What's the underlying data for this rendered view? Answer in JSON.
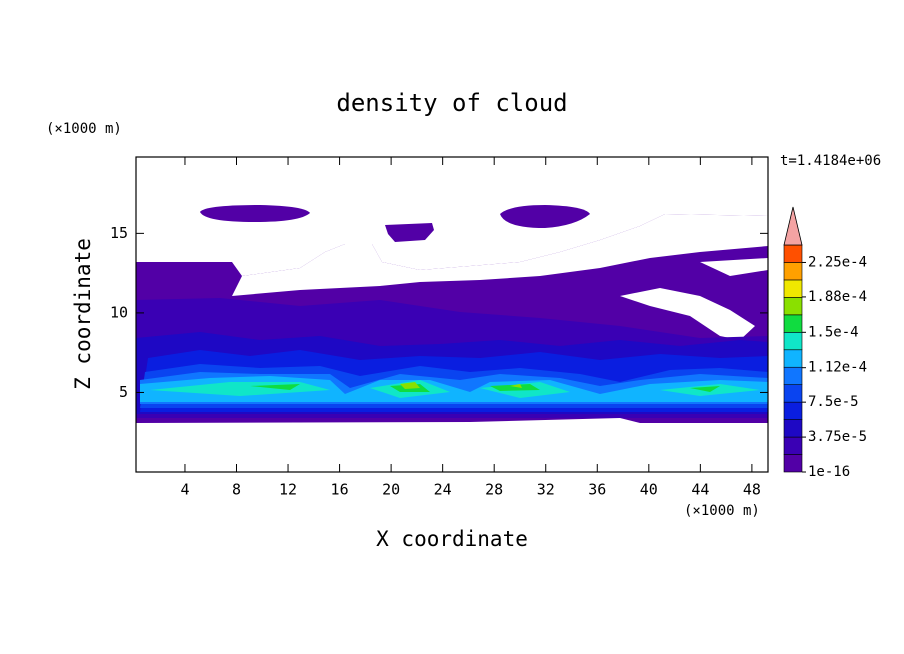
{
  "chart_data": {
    "type": "contour",
    "title": "density of cloud",
    "xlabel": "X coordinate",
    "ylabel": "Z coordinate",
    "x_unit": "(×1000 m)",
    "y_unit": "(×1000 m)",
    "annotation": "t=1.4184e+06",
    "xlim": [
      0.2,
      49.25
    ],
    "xticks": [
      4,
      8,
      12,
      16,
      20,
      24,
      28,
      32,
      36,
      40,
      44,
      48
    ],
    "ylim": [
      0,
      19.8
    ],
    "yticks": [
      5,
      10,
      15
    ],
    "levels": [
      1e-16,
      1.875e-05,
      3.75e-05,
      5.625e-05,
      7.5e-05,
      9.375e-05,
      0.0001125,
      0.00013125,
      0.00015,
      0.00016875,
      0.0001875,
      0.00020625,
      0.000225,
      0.00024375
    ],
    "colors": [
      "#5200a6",
      "#3a00b4",
      "#1e08c4",
      "#0a1ee0",
      "#0a44f0",
      "#1076ff",
      "#10b4ff",
      "#10e6c8",
      "#10dc40",
      "#8ae000",
      "#f0e800",
      "#ffa000",
      "#ff5000"
    ],
    "overflow_color": "#f4a3a3",
    "colorbar_ticks": [
      {
        "value": 1e-16,
        "label": "1e-16"
      },
      {
        "value": 3.75e-05,
        "label": "3.75e-5"
      },
      {
        "value": 7.5e-05,
        "label": "7.5e-5"
      },
      {
        "value": 0.000112,
        "label": "1.12e-4"
      },
      {
        "value": 0.00015,
        "label": "1.5e-4"
      },
      {
        "value": 0.000188,
        "label": "1.88e-4"
      },
      {
        "value": 0.000225,
        "label": "2.25e-4"
      }
    ]
  }
}
